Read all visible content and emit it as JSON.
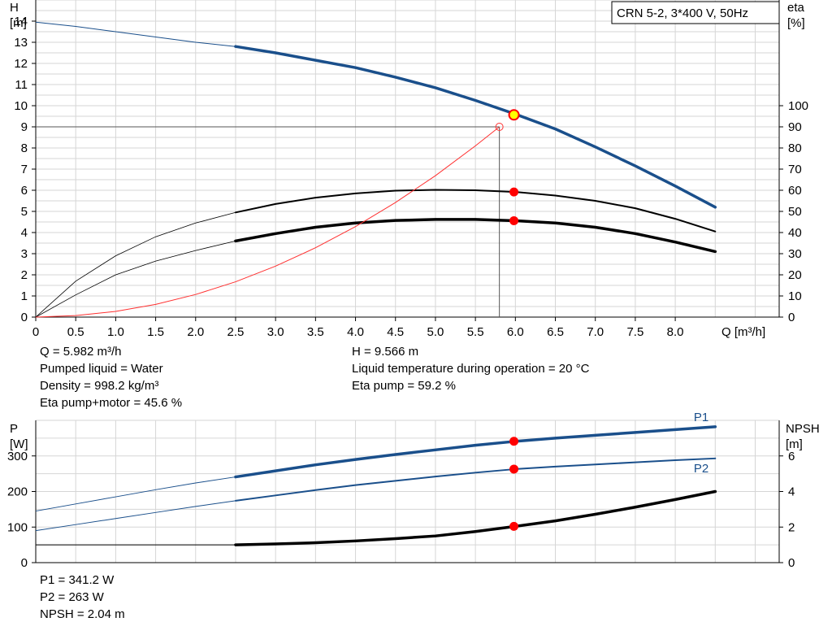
{
  "model": "CRN 5-2, 3*400 V, 50Hz",
  "colors": {
    "head": "#1a4f8b",
    "power": "#1a4f8b",
    "npsh": "#000000",
    "eta": "#000000",
    "system": "#ff3030",
    "op_point": "#ff0000",
    "duty_marker": "#ffff00"
  },
  "results": {
    "upper_left": [
      "Q = 5.982 m³/h",
      "Pumped liquid = Water",
      "Density = 998.2 kg/m³",
      "Eta pump+motor = 45.6 %"
    ],
    "upper_right": [
      "H = 9.566 m",
      "Liquid temperature during operation = 20 °C",
      "Eta pump = 59.2 %"
    ],
    "lower": [
      "P1 = 341.2 W",
      "P2 = 263 W",
      "NPSH = 2.04 m"
    ]
  },
  "chart_data": [
    {
      "type": "line",
      "xlabel": "Q [m³/h]",
      "ylabel": "H\n[m]",
      "ylabel_right": "eta\n[%]",
      "xlim": [
        0,
        9.3
      ],
      "ylim": [
        0,
        15
      ],
      "ylim_right": [
        0,
        150
      ],
      "x_ticks": [
        "0",
        "0.5",
        "1.0",
        "1.5",
        "2.0",
        "2.5",
        "3.0",
        "3.5",
        "4.0",
        "4.5",
        "5.0",
        "5.5",
        "6.0",
        "6.5",
        "7.0",
        "7.5",
        "8.0"
      ],
      "y_ticks": [
        "0",
        "1",
        "2",
        "3",
        "4",
        "5",
        "6",
        "7",
        "8",
        "9",
        "10",
        "11",
        "12",
        "13",
        "14"
      ],
      "y_ticks_right": [
        "0",
        "10",
        "20",
        "30",
        "40",
        "50",
        "60",
        "70",
        "80",
        "90",
        "100"
      ],
      "grid": true,
      "series": [
        {
          "id": "head",
          "axis": "left",
          "x": [
            0,
            0.5,
            1.0,
            1.5,
            2.0,
            2.5,
            3.0,
            3.5,
            4.0,
            4.5,
            5.0,
            5.5,
            6.0,
            6.5,
            7.0,
            7.5,
            8.0,
            8.5
          ],
          "values": [
            13.95,
            13.75,
            13.5,
            13.25,
            13.0,
            12.8,
            12.5,
            12.15,
            11.8,
            11.35,
            10.85,
            10.25,
            9.6,
            8.9,
            8.05,
            7.15,
            6.2,
            5.2
          ],
          "operating_from": 2.5
        },
        {
          "id": "eta-pump",
          "axis": "right",
          "x": [
            0,
            0.5,
            1.0,
            1.5,
            2.0,
            2.5,
            3.0,
            3.5,
            4.0,
            4.5,
            5.0,
            5.5,
            6.0,
            6.5,
            7.0,
            7.5,
            8.0,
            8.5
          ],
          "values": [
            0,
            17,
            29,
            38,
            44.5,
            49.5,
            53.5,
            56.5,
            58.5,
            59.8,
            60.2,
            60,
            59.2,
            57.5,
            55,
            51.5,
            46.5,
            40.5
          ],
          "operating_from": 2.5
        },
        {
          "id": "eta-pump-motor",
          "axis": "right",
          "x": [
            0,
            0.5,
            1.0,
            1.5,
            2.0,
            2.5,
            3.0,
            3.5,
            4.0,
            4.5,
            5.0,
            5.5,
            6.0,
            6.5,
            7.0,
            7.5,
            8.0,
            8.5
          ],
          "values": [
            0,
            10.5,
            20,
            26.5,
            31.5,
            36,
            39.5,
            42.5,
            44.5,
            45.7,
            46.2,
            46.2,
            45.6,
            44.5,
            42.5,
            39.5,
            35.5,
            31
          ],
          "operating_from": 2.5
        },
        {
          "id": "system-curve",
          "axis": "left",
          "x": [
            0,
            0.5,
            1.0,
            1.5,
            2.0,
            2.5,
            3.0,
            3.5,
            4.0,
            4.5,
            5.0,
            5.5,
            5.8
          ],
          "values": [
            0,
            0.07,
            0.27,
            0.6,
            1.07,
            1.67,
            2.41,
            3.28,
            4.28,
            5.42,
            6.69,
            8.1,
            9.0
          ]
        }
      ],
      "duty_point": {
        "q": 5.982,
        "h": 9.566
      },
      "markers": [
        {
          "series": "eta-pump",
          "x": 5.982,
          "y": 59.2
        },
        {
          "series": "eta-pump-motor",
          "x": 5.982,
          "y": 45.6
        }
      ],
      "system_point": {
        "q": 5.8,
        "h": 9.0
      }
    },
    {
      "type": "line",
      "ylabel": "P\n[W]",
      "ylabel_right": "NPSH\n[m]",
      "xlim": [
        0,
        9.3
      ],
      "ylim": [
        0,
        400
      ],
      "ylim_right": [
        0,
        8
      ],
      "y_ticks": [
        "0",
        "100",
        "200",
        "300"
      ],
      "y_ticks_right": [
        "0",
        "2",
        "4",
        "6"
      ],
      "grid": true,
      "series": [
        {
          "id": "p1",
          "name": "P1",
          "axis": "left",
          "x": [
            0,
            0.5,
            1.0,
            1.5,
            2.0,
            2.5,
            3.0,
            3.5,
            4.0,
            4.5,
            5.0,
            5.5,
            6.0,
            6.5,
            7.0,
            7.5,
            8.0,
            8.5
          ],
          "values": [
            145,
            165,
            185,
            205,
            224,
            241,
            258,
            275,
            290,
            304,
            317,
            330,
            341,
            350,
            358,
            366,
            374,
            382
          ],
          "operating_from": 2.5
        },
        {
          "id": "p2",
          "name": "P2",
          "axis": "left",
          "x": [
            0,
            0.5,
            1.0,
            1.5,
            2.0,
            2.5,
            3.0,
            3.5,
            4.0,
            4.5,
            5.0,
            5.5,
            6.0,
            6.5,
            7.0,
            7.5,
            8.0,
            8.5
          ],
          "values": [
            90,
            107,
            124,
            141,
            158,
            174,
            189,
            204,
            218,
            230,
            242,
            253,
            263,
            270,
            276,
            282,
            288,
            293
          ],
          "operating_from": 2.5
        },
        {
          "id": "npsh",
          "axis": "right",
          "x": [
            0,
            0.5,
            1.0,
            1.5,
            2.0,
            2.5,
            3.0,
            3.5,
            4.0,
            4.5,
            5.0,
            5.5,
            6.0,
            6.5,
            7.0,
            7.5,
            8.0,
            8.5
          ],
          "values": [
            1.0,
            1.0,
            1.0,
            1.0,
            1.0,
            1.0,
            1.05,
            1.12,
            1.22,
            1.35,
            1.5,
            1.75,
            2.04,
            2.35,
            2.72,
            3.12,
            3.55,
            4.0
          ],
          "operating_from": 2.5
        }
      ],
      "markers": [
        {
          "series": "p1",
          "x": 5.982,
          "y": 341.2
        },
        {
          "series": "p2",
          "x": 5.982,
          "y": 263
        },
        {
          "series": "npsh",
          "x": 5.982,
          "y": 2.04
        }
      ]
    }
  ]
}
